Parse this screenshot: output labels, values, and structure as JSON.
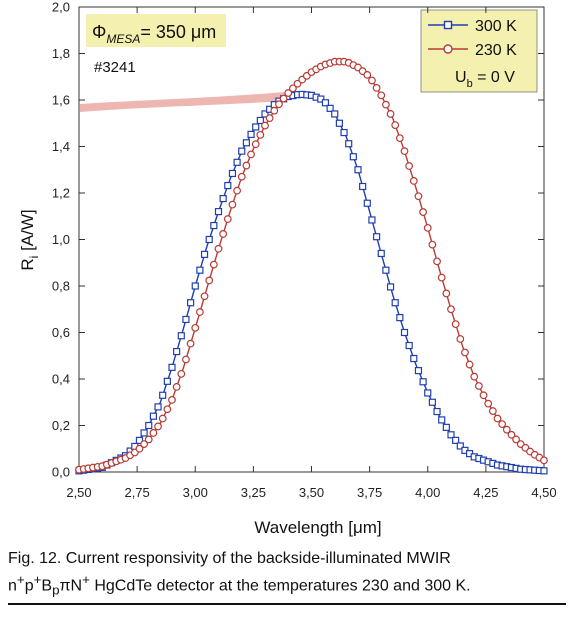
{
  "chart_data": {
    "type": "line",
    "xlabel": "Wavelength [μm]",
    "ylabel_main": "R",
    "ylabel_sub": "i",
    "ylabel_rest": " [A/W]",
    "xlim": [
      2.5,
      4.5
    ],
    "ylim": [
      0.0,
      2.0
    ],
    "x_ticks": [
      "2,50",
      "2,75",
      "3,00",
      "3,25",
      "3,50",
      "3,75",
      "4,00",
      "4,25",
      "4,50"
    ],
    "y_ticks": [
      "0,0",
      "0,2",
      "0,4",
      "0,6",
      "0,8",
      "1,0",
      "1,2",
      "1,4",
      "1,6",
      "1,8",
      "2,0"
    ],
    "grid": false,
    "legend_position": "top-right",
    "series": [
      {
        "name": "300 K",
        "color": "#1f3fb0",
        "marker": "square",
        "points": [
          [
            2.5,
            0.005
          ],
          [
            2.6,
            0.02
          ],
          [
            2.7,
            0.07
          ],
          [
            2.75,
            0.12
          ],
          [
            2.8,
            0.2
          ],
          [
            2.85,
            0.3
          ],
          [
            2.9,
            0.45
          ],
          [
            2.95,
            0.62
          ],
          [
            3.0,
            0.8
          ],
          [
            3.05,
            0.97
          ],
          [
            3.1,
            1.12
          ],
          [
            3.15,
            1.26
          ],
          [
            3.2,
            1.38
          ],
          [
            3.25,
            1.47
          ],
          [
            3.3,
            1.54
          ],
          [
            3.35,
            1.59
          ],
          [
            3.4,
            1.615
          ],
          [
            3.45,
            1.625
          ],
          [
            3.5,
            1.62
          ],
          [
            3.55,
            1.6
          ],
          [
            3.6,
            1.54
          ],
          [
            3.65,
            1.44
          ],
          [
            3.7,
            1.3
          ],
          [
            3.75,
            1.12
          ],
          [
            3.8,
            0.94
          ],
          [
            3.85,
            0.76
          ],
          [
            3.9,
            0.6
          ],
          [
            3.95,
            0.46
          ],
          [
            4.0,
            0.34
          ],
          [
            4.05,
            0.24
          ],
          [
            4.1,
            0.16
          ],
          [
            4.15,
            0.1
          ],
          [
            4.2,
            0.065
          ],
          [
            4.3,
            0.03
          ],
          [
            4.4,
            0.012
          ],
          [
            4.5,
            0.005
          ]
        ]
      },
      {
        "name": "230 K",
        "color": "#b83a34",
        "marker": "circle",
        "points": [
          [
            2.5,
            0.01
          ],
          [
            2.6,
            0.025
          ],
          [
            2.7,
            0.06
          ],
          [
            2.75,
            0.09
          ],
          [
            2.8,
            0.14
          ],
          [
            2.85,
            0.21
          ],
          [
            2.9,
            0.31
          ],
          [
            2.95,
            0.45
          ],
          [
            3.0,
            0.62
          ],
          [
            3.05,
            0.79
          ],
          [
            3.1,
            0.96
          ],
          [
            3.15,
            1.12
          ],
          [
            3.2,
            1.27
          ],
          [
            3.25,
            1.39
          ],
          [
            3.3,
            1.49
          ],
          [
            3.35,
            1.57
          ],
          [
            3.4,
            1.63
          ],
          [
            3.45,
            1.68
          ],
          [
            3.5,
            1.72
          ],
          [
            3.55,
            1.75
          ],
          [
            3.6,
            1.765
          ],
          [
            3.65,
            1.765
          ],
          [
            3.7,
            1.74
          ],
          [
            3.75,
            1.7
          ],
          [
            3.8,
            1.62
          ],
          [
            3.85,
            1.52
          ],
          [
            3.9,
            1.38
          ],
          [
            3.95,
            1.22
          ],
          [
            4.0,
            1.05
          ],
          [
            4.05,
            0.87
          ],
          [
            4.1,
            0.7
          ],
          [
            4.15,
            0.54
          ],
          [
            4.2,
            0.41
          ],
          [
            4.25,
            0.31
          ],
          [
            4.3,
            0.23
          ],
          [
            4.35,
            0.17
          ],
          [
            4.4,
            0.12
          ],
          [
            4.45,
            0.08
          ],
          [
            4.5,
            0.05
          ]
        ]
      }
    ]
  },
  "annotation": {
    "phi": "Φ",
    "phi_sub": "MESA",
    "phi_value": "= 350 μm",
    "sample_id": "#3241",
    "bias_main": "U",
    "bias_sub": "b",
    "bias_value": " = 0 V"
  },
  "colors": {
    "highlight_box": "#f3f0b0",
    "smudge": "#e07a70"
  },
  "caption": {
    "line1": "Fig. 12. Current responsivity of the backside-illuminated MWIR",
    "l2_a": "n",
    "l2_a_sup": "+",
    "l2_b": "p",
    "l2_b_sup": "+",
    "l2_c": "B",
    "l2_c_sub": "p",
    "l2_d": "πN",
    "l2_d_sup": "+",
    "l2_e": " HgCdTe detector at the temperatures 230 and 300 K."
  }
}
